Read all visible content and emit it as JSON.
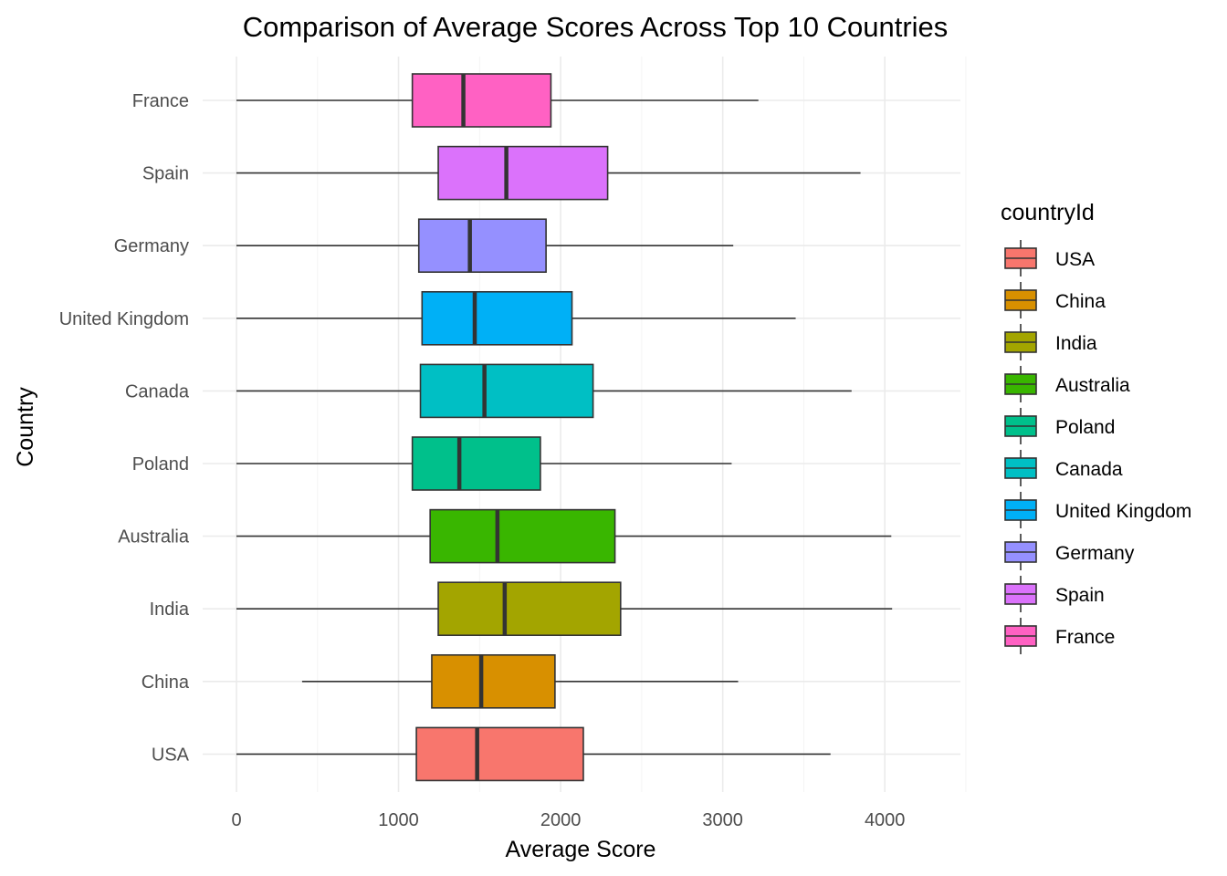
{
  "chart_data": {
    "type": "boxplot",
    "orientation": "horizontal",
    "title": "Comparison of Average Scores Across Top 10 Countries",
    "xlabel": "Average Score",
    "ylabel": "Country",
    "xlim": [
      0,
      4500
    ],
    "x_ticks": [
      0,
      1000,
      2000,
      3000,
      4000
    ],
    "grid": true,
    "legend": {
      "title": "countryId",
      "placement": "right",
      "entries": [
        "USA",
        "China",
        "India",
        "Australia",
        "Poland",
        "Canada",
        "United Kingdom",
        "Germany",
        "Spain",
        "France"
      ]
    },
    "categories": [
      "France",
      "Spain",
      "Germany",
      "United Kingdom",
      "Canada",
      "Poland",
      "Australia",
      "India",
      "China",
      "USA"
    ],
    "boxes": [
      {
        "name": "France",
        "min": 0,
        "q1": 1085,
        "median": 1400,
        "q3": 1940,
        "max": 3220,
        "color": "#FF61C3"
      },
      {
        "name": "Spain",
        "min": 0,
        "q1": 1245,
        "median": 1665,
        "q3": 2290,
        "max": 3850,
        "color": "#DB72FB"
      },
      {
        "name": "Germany",
        "min": 0,
        "q1": 1125,
        "median": 1440,
        "q3": 1910,
        "max": 3065,
        "color": "#9590FF"
      },
      {
        "name": "United Kingdom",
        "min": 0,
        "q1": 1145,
        "median": 1470,
        "q3": 2070,
        "max": 3450,
        "color": "#00B0F6"
      },
      {
        "name": "Canada",
        "min": 0,
        "q1": 1135,
        "median": 1530,
        "q3": 2200,
        "max": 3795,
        "color": "#00BFC4"
      },
      {
        "name": "Poland",
        "min": 0,
        "q1": 1085,
        "median": 1375,
        "q3": 1875,
        "max": 3055,
        "color": "#00C08B"
      },
      {
        "name": "Australia",
        "min": 0,
        "q1": 1195,
        "median": 1610,
        "q3": 2335,
        "max": 4040,
        "color": "#39B600"
      },
      {
        "name": "India",
        "min": 0,
        "q1": 1245,
        "median": 1655,
        "q3": 2370,
        "max": 4045,
        "color": "#A3A500"
      },
      {
        "name": "China",
        "min": 405,
        "q1": 1205,
        "median": 1510,
        "q3": 1965,
        "max": 3095,
        "color": "#D89000"
      },
      {
        "name": "USA",
        "min": 0,
        "q1": 1110,
        "median": 1485,
        "q3": 2140,
        "max": 3665,
        "color": "#F8766D"
      }
    ]
  }
}
